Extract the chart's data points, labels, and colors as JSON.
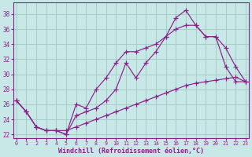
{
  "xlabel": "Windchill (Refroidissement éolien,°C)",
  "background_color": "#c8e8e8",
  "grid_color": "#a0c8c0",
  "line_color": "#882288",
  "spine_color": "#882288",
  "xlim": [
    -0.3,
    23.3
  ],
  "ylim": [
    21.5,
    39.5
  ],
  "yticks": [
    22,
    24,
    26,
    28,
    30,
    32,
    34,
    36,
    38
  ],
  "xticks": [
    0,
    1,
    2,
    3,
    4,
    5,
    6,
    7,
    8,
    9,
    10,
    11,
    12,
    13,
    14,
    15,
    16,
    17,
    18,
    19,
    20,
    21,
    22,
    23
  ],
  "curve1_x": [
    0,
    1,
    2,
    3,
    4,
    5,
    6,
    7,
    8,
    9,
    10,
    11,
    12,
    13,
    14,
    15,
    16,
    17,
    18,
    19,
    20,
    21,
    22,
    23
  ],
  "curve1_y": [
    26.5,
    25.0,
    23.0,
    22.5,
    22.5,
    22.0,
    24.5,
    25.0,
    25.5,
    26.5,
    28.0,
    31.5,
    29.5,
    31.5,
    33.0,
    35.0,
    37.5,
    38.5,
    36.5,
    35.0,
    35.0,
    31.0,
    29.0,
    29.0
  ],
  "curve2_x": [
    0,
    1,
    2,
    3,
    4,
    5,
    6,
    7,
    8,
    9,
    10,
    11,
    12,
    13,
    14,
    15,
    16,
    17,
    18,
    19,
    20,
    21,
    22,
    23
  ],
  "curve2_y": [
    26.5,
    25.0,
    23.0,
    22.5,
    22.5,
    22.0,
    26.0,
    25.5,
    28.0,
    29.5,
    31.5,
    33.0,
    33.0,
    33.5,
    34.0,
    35.0,
    36.0,
    36.5,
    36.5,
    35.0,
    35.0,
    33.5,
    31.0,
    29.0
  ],
  "curve3_x": [
    0,
    1,
    2,
    3,
    4,
    5,
    6,
    7,
    8,
    9,
    10,
    11,
    12,
    13,
    14,
    15,
    16,
    17,
    18,
    19,
    20,
    21,
    22,
    23
  ],
  "curve3_y": [
    26.5,
    25.0,
    23.0,
    22.5,
    22.5,
    22.5,
    23.0,
    23.5,
    24.0,
    24.5,
    25.0,
    25.5,
    26.0,
    26.5,
    27.0,
    27.5,
    28.0,
    28.5,
    28.8,
    29.0,
    29.2,
    29.4,
    29.6,
    29.0
  ]
}
